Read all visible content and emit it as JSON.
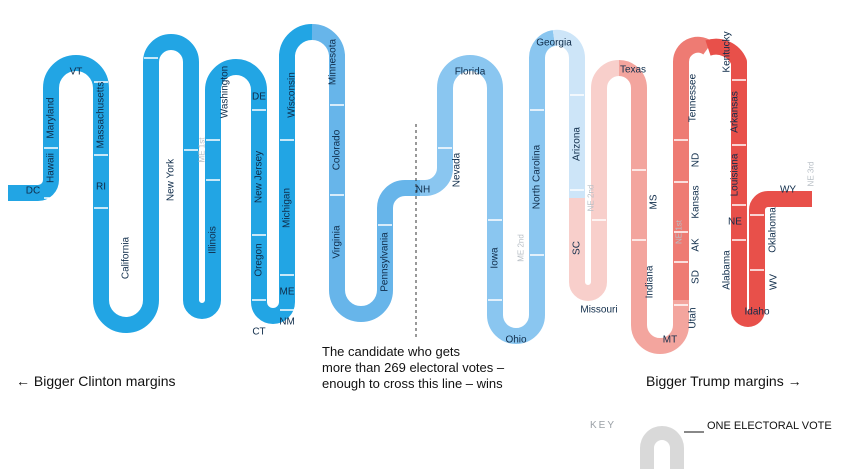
{
  "annotations": {
    "threshold_note": [
      "The candidate who gets",
      "more than 269 electoral votes –",
      "enough to cross this line – wins"
    ],
    "left_label": "← Bigger Clinton margins",
    "right_label": "Bigger Trump margins →"
  },
  "key": {
    "title": "KEY",
    "label": "ONE ELECTORAL VOTE"
  },
  "colors": {
    "dark_blue": "#22a5e4",
    "mid_blue": "#67b5ea",
    "light_blue": "#8ac6f0",
    "pale_blue": "#cde5f8",
    "pale_red": "#f8cfcb",
    "light_red": "#f3a59e",
    "mid_red": "#ee7b73",
    "dark_red": "#e8504a",
    "threshold_line": "#333333",
    "key_swatch": "#d9d9d9"
  },
  "states": [
    {
      "label": "DC",
      "color": "dark_blue"
    },
    {
      "label": "Hawaii",
      "color": "dark_blue"
    },
    {
      "label": "Maryland",
      "color": "dark_blue"
    },
    {
      "label": "VT",
      "color": "dark_blue"
    },
    {
      "label": "Massachusetts",
      "color": "dark_blue"
    },
    {
      "label": "RI",
      "color": "dark_blue"
    },
    {
      "label": "California",
      "color": "dark_blue"
    },
    {
      "label": "New York",
      "color": "dark_blue"
    },
    {
      "label": "ME 1st",
      "color": "dark_blue"
    },
    {
      "label": "Illinois",
      "color": "dark_blue"
    },
    {
      "label": "Washington",
      "color": "dark_blue"
    },
    {
      "label": "DE",
      "color": "dark_blue"
    },
    {
      "label": "New Jersey",
      "color": "dark_blue"
    },
    {
      "label": "Oregon",
      "color": "dark_blue"
    },
    {
      "label": "CT",
      "color": "dark_blue"
    },
    {
      "label": "NM",
      "color": "dark_blue"
    },
    {
      "label": "ME",
      "color": "dark_blue"
    },
    {
      "label": "Michigan",
      "color": "dark_blue"
    },
    {
      "label": "Wisconsin",
      "color": "dark_blue"
    },
    {
      "label": "Minnesota",
      "color": "mid_blue"
    },
    {
      "label": "Colorado",
      "color": "mid_blue"
    },
    {
      "label": "Virginia",
      "color": "mid_blue"
    },
    {
      "label": "Pennsylvania",
      "color": "mid_blue"
    },
    {
      "label": "NH",
      "color": "mid_blue"
    },
    {
      "label": "Nevada",
      "color": "light_blue"
    },
    {
      "label": "Florida",
      "color": "light_blue"
    },
    {
      "label": "Iowa",
      "color": "light_blue"
    },
    {
      "label": "Ohio",
      "color": "light_blue"
    },
    {
      "label": "ME 2nd",
      "color": "light_blue"
    },
    {
      "label": "North Carolina",
      "color": "light_blue"
    },
    {
      "label": "Georgia",
      "color": "pale_blue"
    },
    {
      "label": "Arizona",
      "color": "pale_blue"
    },
    {
      "label": "NE 2nd",
      "color": "pale_red"
    },
    {
      "label": "SC",
      "color": "pale_red"
    },
    {
      "label": "Missouri",
      "color": "pale_red"
    },
    {
      "label": "Texas",
      "color": "light_red"
    },
    {
      "label": "MS",
      "color": "light_red"
    },
    {
      "label": "Indiana",
      "color": "light_red"
    },
    {
      "label": "MT",
      "color": "light_red"
    },
    {
      "label": "Utah",
      "color": "mid_red"
    },
    {
      "label": "SD",
      "color": "mid_red"
    },
    {
      "label": "AK",
      "color": "mid_red"
    },
    {
      "label": "NE 1st",
      "color": "mid_red"
    },
    {
      "label": "Kansas",
      "color": "mid_red"
    },
    {
      "label": "ND",
      "color": "mid_red"
    },
    {
      "label": "Tennessee",
      "color": "mid_red"
    },
    {
      "label": "Kentucky",
      "color": "dark_red"
    },
    {
      "label": "Arkansas",
      "color": "dark_red"
    },
    {
      "label": "Louisiana",
      "color": "dark_red"
    },
    {
      "label": "NE",
      "color": "dark_red"
    },
    {
      "label": "Alabama",
      "color": "dark_red"
    },
    {
      "label": "Idaho",
      "color": "dark_red"
    },
    {
      "label": "WV",
      "color": "dark_red"
    },
    {
      "label": "Oklahoma",
      "color": "dark_red"
    },
    {
      "label": "WY",
      "color": "dark_red"
    },
    {
      "label": "NE 3rd",
      "color": "dark_red"
    }
  ]
}
